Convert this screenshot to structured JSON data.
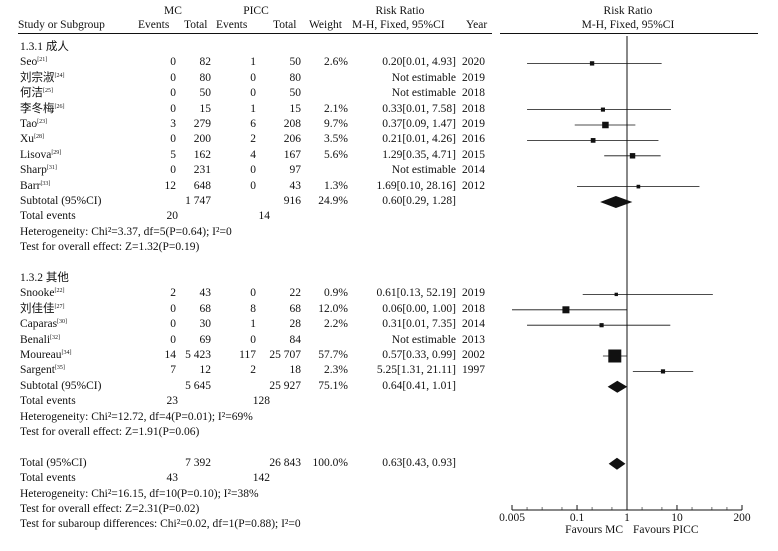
{
  "headers": {
    "mc": "MC",
    "picc": "PICC",
    "risk_ratio": "Risk Ratio",
    "risk_ratio_plot": "Risk Ratio",
    "study": "Study or Subgroup",
    "events1": "Events",
    "total1": "Total",
    "events2": "Events",
    "total2": "Total",
    "weight": "Weight",
    "method": "M-H, Fixed, 95%CI",
    "year": "Year",
    "method_plot": "M-H, Fixed, 95%CI"
  },
  "rows": [
    {
      "kind": "group",
      "study": "1.3.1 成人"
    },
    {
      "kind": "study",
      "study": "Seo",
      "ref": "[21]",
      "e1": "0",
      "n1": "82",
      "e2": "1",
      "n2": "50",
      "weight": "2.6%",
      "ci": "0.20[0.01, 4.93]",
      "year": "2020"
    },
    {
      "kind": "study",
      "study": "刘宗淑",
      "ref": "[24]",
      "e1": "0",
      "n1": "80",
      "e2": "0",
      "n2": "80",
      "weight": "",
      "ci": "Not estimable",
      "year": "2019"
    },
    {
      "kind": "study",
      "study": "何洁",
      "ref": "[25]",
      "e1": "0",
      "n1": "50",
      "e2": "0",
      "n2": "50",
      "weight": "",
      "ci": "Not estimable",
      "year": "2018"
    },
    {
      "kind": "study",
      "study": "李冬梅",
      "ref": "[26]",
      "e1": "0",
      "n1": "15",
      "e2": "1",
      "n2": "15",
      "weight": "2.1%",
      "ci": "0.33[0.01, 7.58]",
      "year": "2018"
    },
    {
      "kind": "study",
      "study": "Tao",
      "ref": "[23]",
      "e1": "3",
      "n1": "279",
      "e2": "6",
      "n2": "208",
      "weight": "9.7%",
      "ci": "0.37[0.09, 1.47]",
      "year": "2019"
    },
    {
      "kind": "study",
      "study": "Xu",
      "ref": "[28]",
      "e1": "0",
      "n1": "200",
      "e2": "2",
      "n2": "206",
      "weight": "3.5%",
      "ci": "0.21[0.01, 4.26]",
      "year": "2016"
    },
    {
      "kind": "study",
      "study": "Lisova",
      "ref": "[29]",
      "e1": "5",
      "n1": "162",
      "e2": "4",
      "n2": "167",
      "weight": "5.6%",
      "ci": "1.29[0.35, 4.71]",
      "year": "2015"
    },
    {
      "kind": "study",
      "study": "Sharp",
      "ref": "[31]",
      "e1": "0",
      "n1": "231",
      "e2": "0",
      "n2": "97",
      "weight": "",
      "ci": "Not estimable",
      "year": "2014"
    },
    {
      "kind": "study",
      "study": "Barr",
      "ref": "[33]",
      "e1": "12",
      "n1": "648",
      "e2": "0",
      "n2": "43",
      "weight": "1.3%",
      "ci": "1.69[0.10, 28.16]",
      "year": "2012"
    },
    {
      "kind": "subtotal",
      "study": "Subtotal (95%CI)",
      "e1": "",
      "n1": "1 747",
      "e2": "",
      "n2": "916",
      "weight": "24.9%",
      "ci": "0.60[0.29, 1.28]",
      "year": ""
    },
    {
      "kind": "events",
      "study": "Total events",
      "e1": "20",
      "e2": "14"
    },
    {
      "kind": "note",
      "study": "Heterogeneity: Chi²=3.37, df=5(P=0.64); I²=0"
    },
    {
      "kind": "note",
      "study": "Test for overall effect: Z=1.32(P=0.19)"
    },
    {
      "kind": "blank"
    },
    {
      "kind": "group",
      "study": "1.3.2 其他"
    },
    {
      "kind": "study",
      "study": "Snooke",
      "ref": "[22]",
      "e1": "2",
      "n1": "43",
      "e2": "0",
      "n2": "22",
      "weight": "0.9%",
      "ci": "0.61[0.13, 52.19]",
      "year": "2019"
    },
    {
      "kind": "study",
      "study": "刘佳佳",
      "ref": "[27]",
      "e1": "0",
      "n1": "68",
      "e2": "8",
      "n2": "68",
      "weight": "12.0%",
      "ci": "0.06[0.00, 1.00]",
      "year": "2018"
    },
    {
      "kind": "study",
      "study": "Caparas",
      "ref": "[30]",
      "e1": "0",
      "n1": "30",
      "e2": "1",
      "n2": "28",
      "weight": "2.2%",
      "ci": "0.31[0.01, 7.35]",
      "year": "2014"
    },
    {
      "kind": "study",
      "study": "Benali",
      "ref": "[32]",
      "e1": "0",
      "n1": "69",
      "e2": "0",
      "n2": "84",
      "weight": "",
      "ci": "Not estimable",
      "year": "2013"
    },
    {
      "kind": "study",
      "study": "Moureau",
      "ref": "[34]",
      "e1": "14",
      "n1": "5 423",
      "e2": "117",
      "n2": "25 707",
      "weight": "57.7%",
      "ci": "0.57[0.33, 0.99]",
      "year": "2002"
    },
    {
      "kind": "study",
      "study": "Sargent",
      "ref": "[35]",
      "e1": "7",
      "n1": "12",
      "e2": "2",
      "n2": "18",
      "weight": "2.3%",
      "ci": "5.25[1.31, 21.11]",
      "year": "1997"
    },
    {
      "kind": "subtotal",
      "study": "Subtotal (95%CI)",
      "e1": "",
      "n1": "5 645",
      "e2": "",
      "n2": "25 927",
      "weight": "75.1%",
      "ci": "0.64[0.41, 1.01]",
      "year": ""
    },
    {
      "kind": "events",
      "study": "Total events",
      "e1": "23",
      "e2": "128"
    },
    {
      "kind": "note",
      "study": "Heterogeneity: Chi²=12.72, df=4(P=0.01); I²=69%"
    },
    {
      "kind": "note",
      "study": "Test for overall effect: Z=1.91(P=0.06)"
    },
    {
      "kind": "blank"
    },
    {
      "kind": "subtotal",
      "study": "Total (95%CI)",
      "e1": "",
      "n1": "7 392",
      "e2": "",
      "n2": "26 843",
      "weight": "100.0%",
      "ci": "0.63[0.43, 0.93]",
      "year": ""
    },
    {
      "kind": "events",
      "study": "Total events",
      "e1": "43",
      "e2": "142"
    },
    {
      "kind": "note",
      "study": "Heterogeneity: Chi²=16.15, df=10(P=0.10); I²=38%"
    },
    {
      "kind": "note",
      "study": "Test for overall effect: Z=2.31(P=0.02)"
    },
    {
      "kind": "note",
      "study": "Test for subaroup differences: Chi²=0.02, df=1(P=0.88); I²=0"
    }
  ],
  "chart_data": {
    "type": "forest",
    "scale": "log",
    "xlim": [
      0.005,
      200
    ],
    "ticks": [
      0.005,
      0.1,
      1,
      10,
      200
    ],
    "tick_labels": [
      "0.005",
      "0.1",
      "1",
      "10",
      "200"
    ],
    "reference_line": 1,
    "left_label": "Favours MC",
    "right_label": "Favours PICC",
    "studies": [
      {
        "row": 1,
        "est": 0.2,
        "lo": 0.01,
        "hi": 4.93,
        "weight": 2.6
      },
      {
        "row": 4,
        "est": 0.33,
        "lo": 0.01,
        "hi": 7.58,
        "weight": 2.1
      },
      {
        "row": 5,
        "est": 0.37,
        "lo": 0.09,
        "hi": 1.47,
        "weight": 9.7
      },
      {
        "row": 6,
        "est": 0.21,
        "lo": 0.01,
        "hi": 4.26,
        "weight": 3.5
      },
      {
        "row": 7,
        "est": 1.29,
        "lo": 0.35,
        "hi": 4.71,
        "weight": 5.6
      },
      {
        "row": 9,
        "est": 1.69,
        "lo": 0.1,
        "hi": 28.16,
        "weight": 1.3
      },
      {
        "row": 16,
        "est": 0.61,
        "lo": 0.13,
        "hi": 52.19,
        "weight": 0.9
      },
      {
        "row": 17,
        "est": 0.06,
        "lo": 0.0,
        "hi": 1.0,
        "weight": 12.0
      },
      {
        "row": 18,
        "est": 0.31,
        "lo": 0.01,
        "hi": 7.35,
        "weight": 2.2
      },
      {
        "row": 20,
        "est": 0.57,
        "lo": 0.33,
        "hi": 0.99,
        "weight": 57.7
      },
      {
        "row": 21,
        "est": 5.25,
        "lo": 1.31,
        "hi": 21.11,
        "weight": 2.3
      }
    ],
    "pooled": [
      {
        "row": 10,
        "est": 0.6,
        "lo": 0.29,
        "hi": 1.28
      },
      {
        "row": 22,
        "est": 0.64,
        "lo": 0.41,
        "hi": 1.01
      },
      {
        "row": 27,
        "est": 0.63,
        "lo": 0.43,
        "hi": 0.93
      }
    ]
  }
}
